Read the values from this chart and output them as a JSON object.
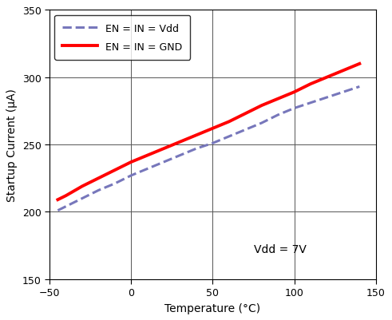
{
  "title": "",
  "xlabel": "Temperature (°C)",
  "ylabel": "Startup Current (μA)",
  "annotation": "Vdd = 7V",
  "xlim": [
    -50,
    145
  ],
  "ylim": [
    150,
    350
  ],
  "xticks": [
    -50,
    0,
    50,
    100,
    150
  ],
  "yticks": [
    150,
    200,
    250,
    300,
    350
  ],
  "line1": {
    "label": "EN = IN = Vdd",
    "color": "#7777bb",
    "linestyle": "--",
    "linewidth": 2.2,
    "x": [
      -45,
      -40,
      -30,
      -20,
      -10,
      0,
      10,
      20,
      30,
      40,
      50,
      60,
      70,
      80,
      90,
      100,
      110,
      120,
      130,
      140
    ],
    "y": [
      201,
      204,
      210,
      216,
      221,
      227,
      232,
      237,
      242,
      247,
      251,
      256,
      261,
      266,
      272,
      277,
      281,
      285,
      289,
      293
    ]
  },
  "line2": {
    "label": "EN = IN = GND",
    "color": "#ff0000",
    "linestyle": "-",
    "linewidth": 2.8,
    "x": [
      -45,
      -40,
      -30,
      -20,
      -10,
      0,
      10,
      20,
      30,
      40,
      50,
      60,
      70,
      80,
      90,
      100,
      110,
      120,
      130,
      140
    ],
    "y": [
      209,
      212,
      219,
      225,
      231,
      237,
      242,
      247,
      252,
      257,
      262,
      267,
      273,
      279,
      284,
      289,
      295,
      300,
      305,
      310
    ]
  },
  "grid_color": "#555555",
  "background_color": "#ffffff",
  "legend_fontsize": 9,
  "axis_fontsize": 10,
  "tick_fontsize": 9,
  "annotation_fontsize": 10
}
